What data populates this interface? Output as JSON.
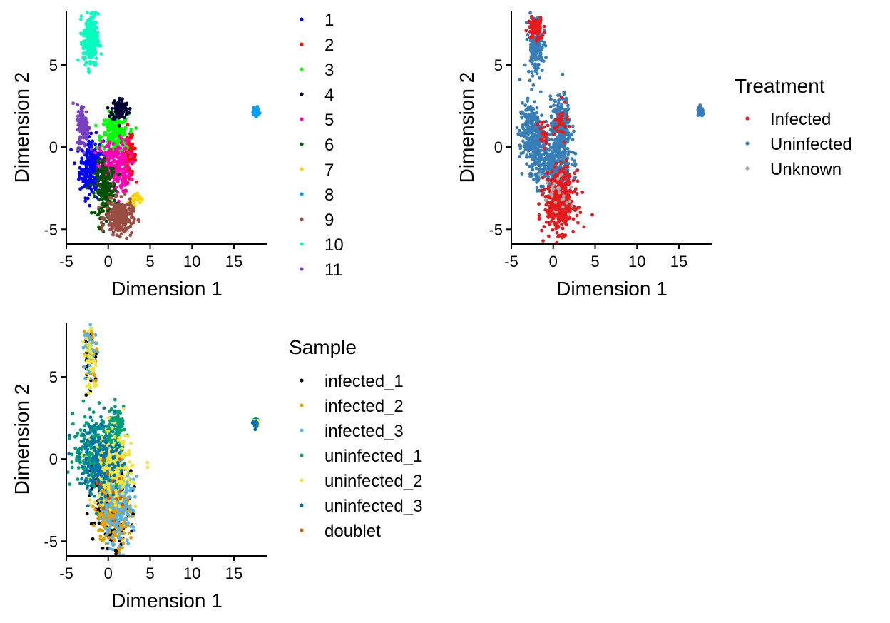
{
  "chart_data": [
    {
      "type": "scatter",
      "xlabel": "Dimension 1",
      "ylabel": "Dimension 2",
      "xlim": [
        -5,
        19
      ],
      "ylim": [
        -5.9,
        8.3
      ],
      "xticks": [
        "-5",
        "0",
        "5",
        "10",
        "15"
      ],
      "yticks": [
        "-5",
        "0",
        "5"
      ],
      "legend_title": "",
      "legend_position": "right",
      "color_by": "cluster",
      "series": [
        {
          "name": "1",
          "color": "#0000FF",
          "clusters": [
            {
              "cx": -2.0,
              "cy": -1.2,
              "sx": 0.7,
              "sy": 0.9,
              "n": 260
            }
          ]
        },
        {
          "name": "2",
          "color": "#FF0000",
          "clusters": [
            {
              "cx": 2.5,
              "cy": -0.6,
              "sx": 0.4,
              "sy": 0.6,
              "n": 120
            }
          ]
        },
        {
          "name": "3",
          "color": "#00FF00",
          "clusters": [
            {
              "cx": 0.8,
              "cy": 0.6,
              "sx": 0.8,
              "sy": 0.7,
              "n": 240
            }
          ]
        },
        {
          "name": "4",
          "color": "#000033",
          "clusters": [
            {
              "cx": 1.4,
              "cy": 2.3,
              "sx": 0.5,
              "sy": 0.35,
              "n": 90
            }
          ]
        },
        {
          "name": "5",
          "color": "#FF00B6",
          "clusters": [
            {
              "cx": 0.8,
              "cy": -1.2,
              "sx": 0.9,
              "sy": 0.8,
              "n": 240
            }
          ]
        },
        {
          "name": "6",
          "color": "#005300",
          "clusters": [
            {
              "cx": -0.3,
              "cy": -2.6,
              "sx": 0.6,
              "sy": 0.8,
              "n": 210
            }
          ]
        },
        {
          "name": "7",
          "color": "#FFD300",
          "clusters": [
            {
              "cx": 3.1,
              "cy": -3.1,
              "sx": 0.35,
              "sy": 0.2,
              "n": 30
            }
          ]
        },
        {
          "name": "8",
          "color": "#009FFF",
          "clusters": [
            {
              "cx": 17.6,
              "cy": 2.15,
              "sx": 0.18,
              "sy": 0.12,
              "n": 60
            }
          ]
        },
        {
          "name": "9",
          "color": "#9A4D42",
          "clusters": [
            {
              "cx": 1.3,
              "cy": -4.3,
              "sx": 0.8,
              "sy": 0.5,
              "n": 260
            }
          ]
        },
        {
          "name": "10",
          "color": "#00FFBE",
          "clusters": [
            {
              "cx": -2.1,
              "cy": 6.5,
              "sx": 0.45,
              "sy": 0.8,
              "n": 230
            }
          ]
        },
        {
          "name": "11",
          "color": "#783FC1",
          "clusters": [
            {
              "cx": -3.0,
              "cy": 1.3,
              "sx": 0.35,
              "sy": 0.65,
              "n": 110
            }
          ]
        }
      ]
    },
    {
      "type": "scatter",
      "xlabel": "Dimension 1",
      "ylabel": "Dimension 2",
      "xlim": [
        -5,
        19
      ],
      "ylim": [
        -5.9,
        8.3
      ],
      "xticks": [
        "-5",
        "0",
        "5",
        "10",
        "15"
      ],
      "yticks": [
        "-5",
        "0",
        "5"
      ],
      "legend_title": "Treatment",
      "legend_position": "right",
      "color_by": "treatment",
      "series": [
        {
          "name": "Uninfected",
          "color": "#377EB8",
          "clusters": [
            {
              "cx": -2.1,
              "cy": 6.2,
              "sx": 0.45,
              "sy": 0.9,
              "n": 150
            },
            {
              "cx": -2.6,
              "cy": 0.9,
              "sx": 0.7,
              "sy": 0.9,
              "n": 260
            },
            {
              "cx": 0.9,
              "cy": 1.2,
              "sx": 0.6,
              "sy": 0.9,
              "n": 260
            },
            {
              "cx": -0.3,
              "cy": -1.0,
              "sx": 1.2,
              "sy": 0.7,
              "n": 320
            },
            {
              "cx": 17.6,
              "cy": 2.15,
              "sx": 0.18,
              "sy": 0.12,
              "n": 60
            }
          ]
        },
        {
          "name": "Infected",
          "color": "#E41A1C",
          "clusters": [
            {
              "cx": -2.1,
              "cy": 7.2,
              "sx": 0.45,
              "sy": 0.35,
              "n": 80
            },
            {
              "cx": 0.8,
              "cy": -3.3,
              "sx": 0.9,
              "sy": 0.9,
              "n": 420
            },
            {
              "cx": 0.9,
              "cy": 1.4,
              "sx": 0.4,
              "sy": 0.6,
              "n": 30
            },
            {
              "cx": -1.2,
              "cy": 0.9,
              "sx": 0.3,
              "sy": 0.4,
              "n": 20
            }
          ]
        },
        {
          "name": "Unknown",
          "color": "#AAAAAA",
          "clusters": [
            {
              "cx": 0.5,
              "cy": -3.0,
              "sx": 1.0,
              "sy": 1.0,
              "n": 25
            }
          ]
        }
      ]
    },
    {
      "type": "scatter",
      "xlabel": "Dimension 1",
      "ylabel": "Dimension 2",
      "xlim": [
        -5,
        19
      ],
      "ylim": [
        -5.9,
        8.3
      ],
      "xticks": [
        "-5",
        "0",
        "5",
        "10",
        "15"
      ],
      "yticks": [
        "-5",
        "0",
        "5"
      ],
      "legend_title": "Sample",
      "legend_position": "right",
      "color_by": "sample",
      "series": [
        {
          "name": "infected_1",
          "color": "#000000",
          "clusters": [
            {
              "cx": 0.3,
              "cy": -2.4,
              "sx": 1.1,
              "sy": 1.4,
              "n": 230
            },
            {
              "cx": -2.1,
              "cy": 6.0,
              "sx": 0.4,
              "sy": 0.9,
              "n": 30
            }
          ]
        },
        {
          "name": "infected_2",
          "color": "#E69F00",
          "clusters": [
            {
              "cx": 0.6,
              "cy": -3.2,
              "sx": 1.0,
              "sy": 1.0,
              "n": 230
            },
            {
              "cx": -2.1,
              "cy": 6.5,
              "sx": 0.4,
              "sy": 0.8,
              "n": 40
            }
          ]
        },
        {
          "name": "infected_3",
          "color": "#56B4E9",
          "clusters": [
            {
              "cx": 1.0,
              "cy": -2.8,
              "sx": 1.0,
              "sy": 1.3,
              "n": 210
            },
            {
              "cx": -2.1,
              "cy": 6.6,
              "sx": 0.4,
              "sy": 0.7,
              "n": 40
            }
          ]
        },
        {
          "name": "uninfected_1",
          "color": "#009E73",
          "clusters": [
            {
              "cx": -1.5,
              "cy": 0.4,
              "sx": 1.3,
              "sy": 1.1,
              "n": 300
            },
            {
              "cx": 0.9,
              "cy": 1.5,
              "sx": 0.5,
              "sy": 0.8,
              "n": 120
            },
            {
              "cx": 17.6,
              "cy": 2.15,
              "sx": 0.18,
              "sy": 0.12,
              "n": 20
            }
          ]
        },
        {
          "name": "uninfected_2",
          "color": "#F0E442",
          "clusters": [
            {
              "cx": 0.4,
              "cy": -0.6,
              "sx": 1.2,
              "sy": 1.1,
              "n": 260
            },
            {
              "cx": -2.1,
              "cy": 5.8,
              "sx": 0.4,
              "sy": 0.9,
              "n": 40
            },
            {
              "cx": 17.6,
              "cy": 2.15,
              "sx": 0.18,
              "sy": 0.12,
              "n": 20
            }
          ]
        },
        {
          "name": "uninfected_3",
          "color": "#0072B2",
          "clusters": [
            {
              "cx": -1.0,
              "cy": 0.0,
              "sx": 1.2,
              "sy": 1.2,
              "n": 160
            },
            {
              "cx": 17.6,
              "cy": 2.15,
              "sx": 0.18,
              "sy": 0.12,
              "n": 15
            }
          ]
        },
        {
          "name": "doublet",
          "color": "#D55E00",
          "clusters": [
            {
              "cx": 0.5,
              "cy": -2.5,
              "sx": 1.0,
              "sy": 1.0,
              "n": 15
            }
          ]
        }
      ]
    }
  ]
}
